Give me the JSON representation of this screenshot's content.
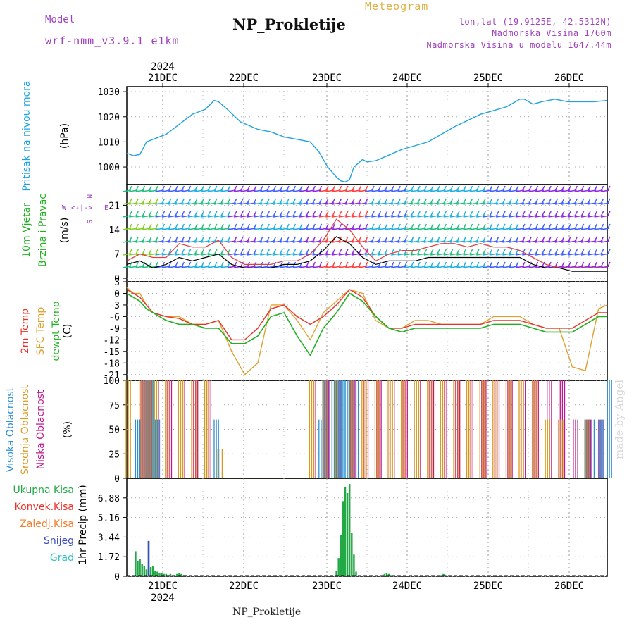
{
  "header": {
    "model_label": "Model",
    "model_name": "wrf-nmm_v3.9.1 e1km",
    "title": "NP_Prokletije",
    "meteogram_label": "Meteogram",
    "coords": "lon,lat (19.9125E, 42.5312N)",
    "altitude": "Nadmorska Visina 1760m",
    "model_altitude": "Nadmorska Visina u modelu 1647.44m",
    "footer": "NP_Prokletije",
    "watermark": "made by Angel"
  },
  "colors": {
    "pressure": "#1fa3e0",
    "wind_mean": "#000000",
    "wind_gust": "#e04040",
    "temp2m": "#e8332a",
    "sfc_temp": "#e0a030",
    "dewpt": "#22b022",
    "low_cloud": "#c0188a",
    "mid_cloud": "#d89a20",
    "high_cloud": "#2b8fd0",
    "precip_total": "#22a844",
    "precip_snow": "#3a4cc0",
    "purple_text": "#a040c0",
    "gold_text": "#e0b040"
  },
  "time_axis": {
    "year": "2024",
    "days": [
      "21DEC",
      "22DEC",
      "23DEC",
      "24DEC",
      "25DEC",
      "26DEC"
    ],
    "hours_total": 143
  },
  "chart_data": [
    {
      "type": "line",
      "name": "pressure",
      "ylabel": "Pritisak na nivou mora",
      "unit": "(hPa)",
      "ylim": [
        993,
        1032
      ],
      "yticks": [
        1000,
        1010,
        1020,
        1030
      ],
      "series": [
        {
          "name": "pressure",
          "x": [
            0,
            3,
            6,
            9,
            12,
            18,
            24,
            30,
            36,
            40,
            42,
            46,
            52,
            60,
            66,
            72,
            78,
            84,
            88,
            92,
            96,
            98,
            100,
            102,
            104,
            108,
            110,
            114,
            118,
            126,
            138,
            150,
            162,
            168,
            174,
            180,
            182,
            186,
            190,
            196,
            202,
            206,
            214,
            220
          ],
          "values": [
            1005.5,
            1004.5,
            1005,
            1010,
            1011,
            1013,
            1017,
            1021,
            1023,
            1026.5,
            1026,
            1023,
            1018,
            1015,
            1014,
            1012,
            1011,
            1010,
            1006,
            1000,
            996,
            994.5,
            994,
            995,
            1000,
            1003,
            1002,
            1002.5,
            1004,
            1007,
            1010,
            1016,
            1021,
            1022.5,
            1024,
            1027,
            1027,
            1025,
            1026,
            1027,
            1026,
            1026,
            1026,
            1026.5
          ]
        }
      ]
    },
    {
      "type": "line",
      "name": "wind",
      "ylabel": "10m Vjetar",
      "ylabel2": "Brzina i Pravac",
      "unit": "(m/s)",
      "compass_legend": "W <-|-> E, N above, S below",
      "ylim": [
        -1,
        27
      ],
      "yticks": [
        0,
        7,
        14,
        21
      ],
      "series": [
        {
          "name": "mean",
          "x": [
            0,
            6,
            12,
            18,
            24,
            30,
            36,
            42,
            48,
            54,
            60,
            66,
            72,
            78,
            84,
            90,
            96,
            102,
            108,
            114,
            120,
            126,
            132,
            138,
            144,
            150,
            156,
            162,
            168,
            174,
            180,
            186,
            192,
            198,
            204,
            210,
            216,
            220
          ],
          "values": [
            4,
            5,
            3,
            4,
            6,
            5,
            6,
            7,
            4,
            3,
            3,
            3,
            4,
            4,
            5,
            8,
            12,
            10,
            6,
            4,
            5,
            5,
            5,
            6,
            6,
            6,
            6,
            6,
            6,
            6,
            6,
            4,
            3,
            3,
            2,
            2,
            2,
            2
          ]
        },
        {
          "name": "gust",
          "x": [
            0,
            6,
            12,
            18,
            24,
            30,
            36,
            42,
            48,
            54,
            60,
            66,
            72,
            78,
            84,
            90,
            96,
            102,
            108,
            114,
            120,
            126,
            132,
            138,
            144,
            150,
            156,
            162,
            168,
            174,
            180,
            186,
            192,
            198,
            204,
            210,
            216,
            220
          ],
          "values": [
            5,
            7,
            6,
            6,
            10,
            9,
            9,
            11,
            6,
            4,
            4,
            4,
            5,
            5,
            7,
            11,
            17,
            14,
            9,
            5,
            7,
            8,
            8,
            9,
            10,
            10,
            9,
            10,
            9,
            9,
            8,
            6,
            4,
            3,
            3,
            3,
            3,
            3
          ]
        }
      ]
    },
    {
      "type": "line",
      "name": "temperature",
      "ylabel": "2m Temp",
      "ylabel2": "SFC Temp",
      "ylabel3": "dewpt Temp",
      "unit": "(C)",
      "ylim": [
        -22.5,
        3
      ],
      "yticks": [
        3,
        0,
        -3,
        -6,
        -9,
        -12,
        -15,
        -18,
        -21
      ],
      "series": [
        {
          "name": "2m",
          "x": [
            0,
            3,
            6,
            9,
            12,
            18,
            24,
            30,
            36,
            42,
            48,
            54,
            60,
            66,
            72,
            78,
            84,
            90,
            96,
            102,
            108,
            114,
            120,
            126,
            132,
            138,
            144,
            150,
            156,
            162,
            168,
            174,
            180,
            186,
            192,
            198,
            204,
            210,
            216,
            220
          ],
          "values": [
            1,
            0,
            -1,
            -3,
            -5,
            -6,
            -6.5,
            -8,
            -8,
            -7,
            -12,
            -12,
            -9,
            -4,
            -3,
            -6,
            -8,
            -6,
            -3,
            1,
            -1,
            -6,
            -9,
            -9,
            -8,
            -8,
            -8,
            -8,
            -8,
            -8,
            -7,
            -7,
            -7,
            -8,
            -9,
            -9,
            -9,
            -7,
            -5,
            -5
          ]
        },
        {
          "name": "sfc",
          "x": [
            0,
            3,
            6,
            9,
            12,
            18,
            24,
            30,
            36,
            42,
            48,
            54,
            60,
            66,
            72,
            78,
            84,
            90,
            96,
            102,
            108,
            114,
            120,
            126,
            132,
            138,
            144,
            150,
            156,
            162,
            168,
            174,
            180,
            186,
            192,
            198,
            204,
            210,
            216,
            220
          ],
          "values": [
            1.5,
            0,
            0,
            -3,
            -5,
            -6,
            -6,
            -8,
            -8,
            -7,
            -15,
            -21,
            -18,
            -3,
            -3,
            -7,
            -12,
            -5,
            -2,
            1,
            0,
            -7,
            -9,
            -9,
            -7,
            -7,
            -8,
            -8,
            -8,
            -8,
            -6,
            -6,
            -6,
            -8,
            -9,
            -9,
            -19,
            -20,
            -4,
            -3
          ]
        },
        {
          "name": "dewpt",
          "x": [
            0,
            3,
            6,
            9,
            12,
            18,
            24,
            30,
            36,
            42,
            48,
            54,
            60,
            66,
            72,
            78,
            84,
            90,
            96,
            102,
            108,
            114,
            120,
            126,
            132,
            138,
            144,
            150,
            156,
            162,
            168,
            174,
            180,
            186,
            192,
            198,
            204,
            210,
            216,
            220
          ],
          "values": [
            0,
            -1,
            -2,
            -4,
            -5,
            -7,
            -8,
            -8,
            -9,
            -9,
            -13,
            -13,
            -11,
            -6,
            -5,
            -11,
            -16,
            -9,
            -5,
            0,
            -2,
            -6,
            -9,
            -10,
            -9,
            -9,
            -9,
            -9,
            -9,
            -9,
            -8,
            -8,
            -8,
            -9,
            -10,
            -10,
            -10,
            -8,
            -6,
            -6
          ]
        }
      ]
    },
    {
      "type": "bar",
      "name": "clouds",
      "ylabel": "Visoka Oblacnost",
      "ylabel2": "Srednja Oblacnost",
      "ylabel3": "Niska Oblacnost",
      "unit": "(%)",
      "ylim": [
        0,
        100
      ],
      "yticks": [
        0,
        25,
        50,
        75,
        100
      ],
      "series": [
        {
          "name": "low",
          "x": [
            6,
            9,
            12,
            18,
            24,
            30,
            36,
            42,
            48,
            54,
            60,
            66,
            72,
            78,
            84,
            90,
            96,
            102,
            108,
            114,
            120,
            126,
            132,
            138,
            144,
            150,
            156,
            162,
            168,
            174,
            180,
            186,
            192,
            198,
            204,
            210,
            216
          ],
          "values": [
            100,
            100,
            100,
            100,
            100,
            100,
            100,
            0,
            0,
            0,
            0,
            0,
            0,
            0,
            100,
            100,
            100,
            100,
            100,
            100,
            100,
            100,
            100,
            100,
            100,
            100,
            100,
            100,
            100,
            100,
            100,
            100,
            100,
            100,
            60,
            60,
            60
          ]
        },
        {
          "name": "mid",
          "x": [
            0,
            6,
            9,
            12,
            18,
            24,
            30,
            36,
            42,
            48,
            54,
            60,
            66,
            72,
            78,
            84,
            90,
            96,
            102,
            108,
            114,
            120,
            126,
            132,
            138,
            144,
            150,
            156,
            162,
            168,
            174,
            180,
            186,
            192,
            198,
            204,
            210,
            216
          ],
          "values": [
            100,
            100,
            100,
            100,
            100,
            100,
            100,
            100,
            30,
            0,
            0,
            0,
            0,
            0,
            0,
            100,
            100,
            100,
            100,
            100,
            100,
            100,
            100,
            100,
            100,
            100,
            100,
            100,
            100,
            100,
            100,
            100,
            100,
            60,
            60,
            0,
            60,
            0
          ]
        },
        {
          "name": "high",
          "x": [
            4,
            7,
            10,
            13,
            40,
            58,
            60,
            62,
            64,
            66,
            88,
            90,
            92,
            94,
            96,
            98,
            100,
            102,
            104,
            210,
            212,
            216,
            220
          ],
          "values": [
            60,
            100,
            100,
            60,
            60,
            0,
            0,
            0,
            0,
            0,
            60,
            100,
            100,
            100,
            100,
            100,
            100,
            100,
            100,
            60,
            60,
            60,
            100
          ]
        }
      ]
    },
    {
      "type": "bar",
      "name": "precip",
      "ylabel": "1hr Precip",
      "unit": "(mm)",
      "legend": [
        "Ukupna Kisa",
        "Konvek.Kisa",
        "Zaledj.Kisa",
        "Snijeg",
        "Grad"
      ],
      "ylim": [
        0,
        8.6
      ],
      "yticks": [
        0,
        1.72,
        3.44,
        5.16,
        6.88
      ],
      "series": [
        {
          "name": "total",
          "x": [
            4,
            5,
            6,
            7,
            8,
            9,
            10,
            11,
            12,
            13,
            14,
            15,
            16,
            17,
            18,
            19,
            20,
            21,
            22,
            23,
            24,
            25,
            26,
            27,
            28,
            29,
            96,
            97,
            98,
            99,
            100,
            101,
            102,
            103,
            104,
            105,
            118,
            119,
            120,
            121,
            144,
            145,
            146
          ],
          "values": [
            2.2,
            1.3,
            1.5,
            1.1,
            0.9,
            0.6,
            3.1,
            0.8,
            0.9,
            0.5,
            0.4,
            0.3,
            0.3,
            0.2,
            0.2,
            0.1,
            0.2,
            0.1,
            0.1,
            0.2,
            0.3,
            0.2,
            0.1,
            0.1,
            0.05,
            0.05,
            0.5,
            1.6,
            3.6,
            6.6,
            7.8,
            7.3,
            8.1,
            3.8,
            1.9,
            0.4,
            0.2,
            0.3,
            0.2,
            0.1,
            0.1,
            0.2,
            0.1
          ]
        },
        {
          "name": "snow",
          "x": [
            10
          ],
          "values": [
            3.1
          ]
        }
      ]
    }
  ]
}
